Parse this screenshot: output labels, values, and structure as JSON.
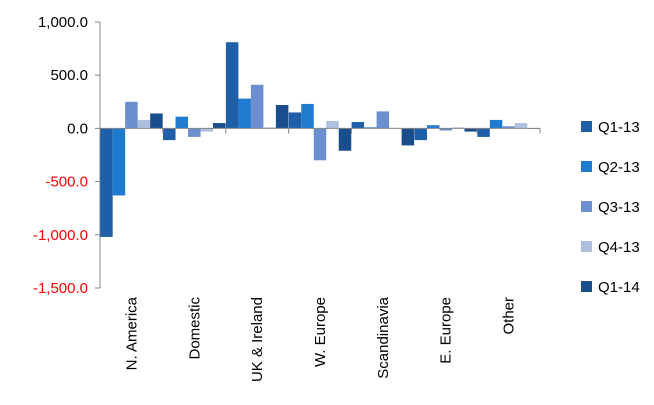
{
  "chart_data": {
    "type": "bar",
    "title": "",
    "xlabel": "",
    "ylabel": "",
    "ylim": [
      -1500,
      1000
    ],
    "yticks": [
      1000,
      500,
      0,
      -500,
      -1000,
      -1500
    ],
    "ytick_labels": [
      "1,000.0",
      "500.0",
      "0.0",
      "-500.0",
      "-1,000.0",
      "-1,500.0"
    ],
    "negative_tick_color": "#ff0000",
    "categories": [
      "N. America",
      "Domestic",
      "UK & Ireland",
      "W. Europe",
      "Scandinavia",
      "E. Europe",
      "Other"
    ],
    "series": [
      {
        "name": "Q1-13",
        "color": "#1f5fa8",
        "values": [
          -1020,
          -110,
          810,
          150,
          60,
          -110,
          -80
        ]
      },
      {
        "name": "Q2-13",
        "color": "#1f7bd0",
        "values": [
          -630,
          110,
          280,
          230,
          10,
          30,
          80
        ]
      },
      {
        "name": "Q3-13",
        "color": "#6b8fcf",
        "values": [
          250,
          -80,
          410,
          -300,
          160,
          -20,
          20
        ]
      },
      {
        "name": "Q4-13",
        "color": "#aebfe0",
        "values": [
          80,
          -30,
          10,
          70,
          5,
          10,
          50
        ]
      },
      {
        "name": "Q1-14",
        "color": "#1a4d8c",
        "values": [
          140,
          50,
          220,
          -210,
          -160,
          -30,
          0
        ]
      }
    ],
    "legend_position": "right",
    "grid": false
  }
}
